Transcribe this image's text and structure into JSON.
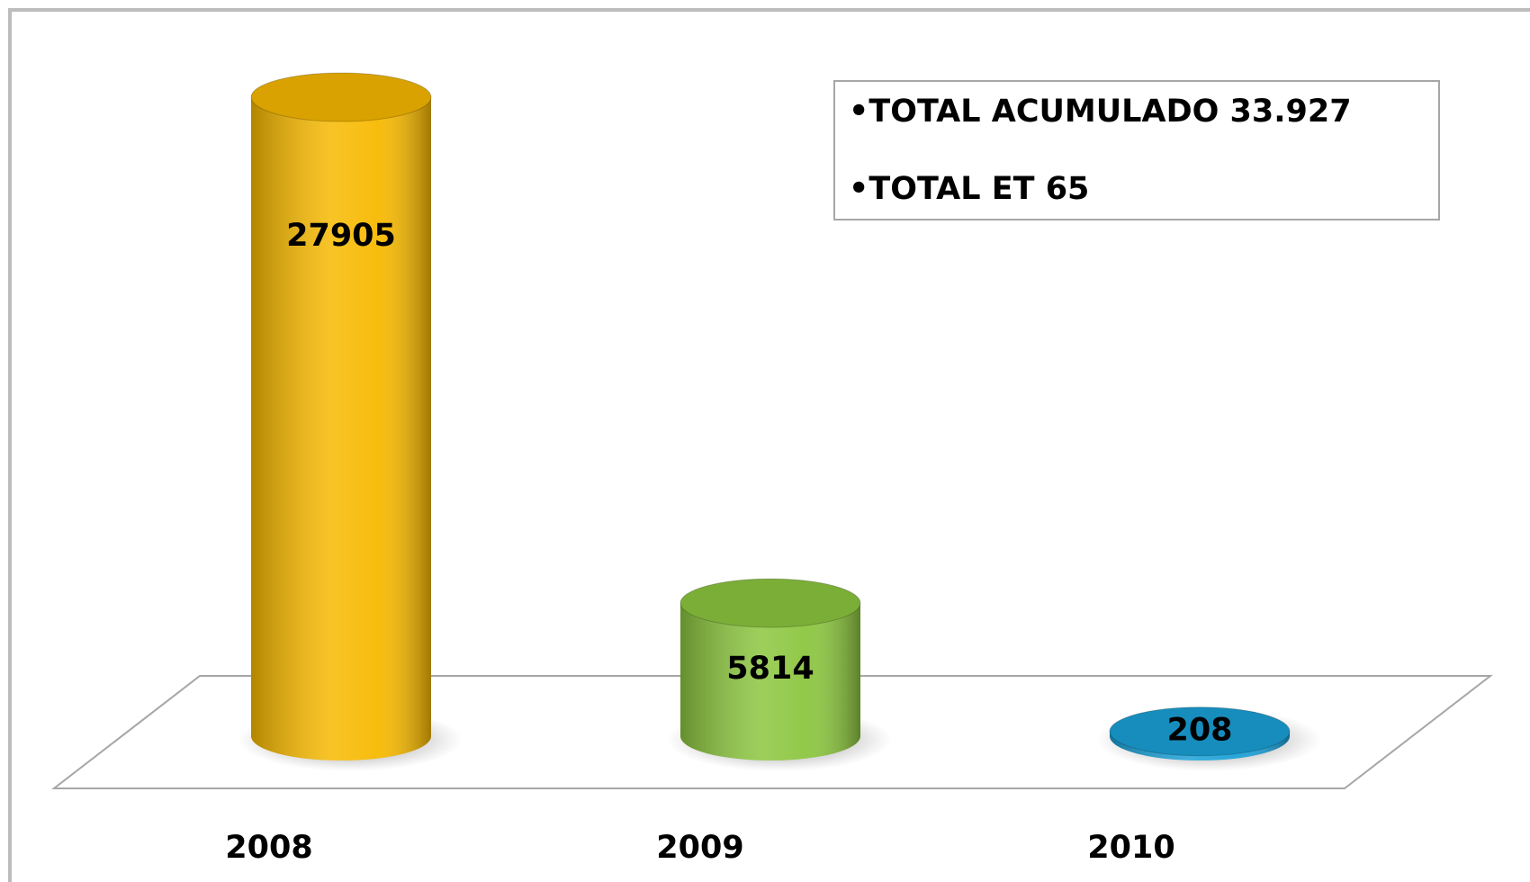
{
  "chart_data": {
    "type": "bar",
    "categories": [
      "2008",
      "2009",
      "2010"
    ],
    "values": [
      27905,
      5814,
      208
    ],
    "colors": [
      "#f7b900",
      "#8cc63f",
      "#1ba1d8"
    ],
    "annotations": [
      "•TOTAL ACUMULADO 33.927",
      "•TOTAL ET 65"
    ]
  }
}
